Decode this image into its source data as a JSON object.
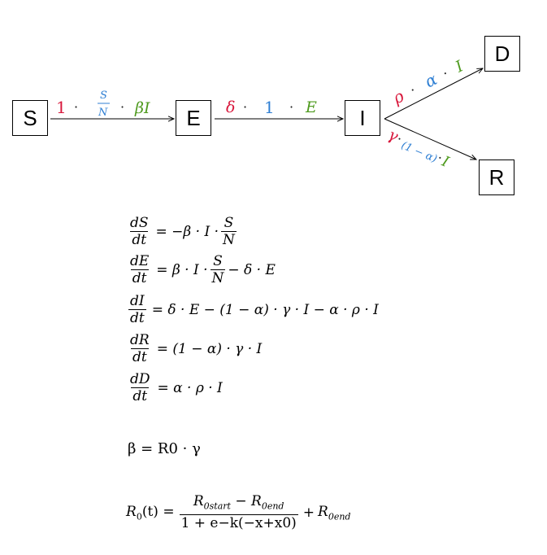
{
  "nodes": {
    "s": "S",
    "e": "E",
    "i": "I",
    "d": "D",
    "r": "R"
  },
  "edges": {
    "s_to_e": {
      "c1": "1",
      "dot1": "·",
      "frac_num": "S",
      "frac_den": "N",
      "dot2": "·",
      "c3": "βI"
    },
    "e_to_i": {
      "c1": "δ",
      "dot1": "·",
      "c2": "1",
      "dot2": "·",
      "c3": "E"
    },
    "i_to_d": {
      "c1": "ρ",
      "dot1": "·",
      "c2": "α",
      "dot2": "·",
      "c3": "I"
    },
    "i_to_r": {
      "c1": "γ",
      "dot1": "·",
      "c2": "(1 − α)",
      "dot2": "·",
      "c3": "I"
    }
  },
  "colors": {
    "red": "#d8183c",
    "blue": "#2f7fd3",
    "green": "#4e9a1e"
  },
  "equations": {
    "ds": {
      "num": "dS",
      "den": "dt",
      "rhs_a": "= −β · I ·",
      "frac_num": "S",
      "frac_den": "N"
    },
    "de": {
      "num": "dE",
      "den": "dt",
      "rhs_a": "= β · I ·",
      "frac_num": "S",
      "frac_den": "N",
      "rhs_b": "− δ · E"
    },
    "di": {
      "num": "dI",
      "den": "dt",
      "rhs": "= δ · E − (1 − α) · γ · I − α · ρ · I"
    },
    "dr": {
      "num": "dR",
      "den": "dt",
      "rhs": "= (1 − α) · γ · I"
    },
    "dd": {
      "num": "dD",
      "den": "dt",
      "rhs": "= α · ρ · I"
    }
  },
  "beta_eq": "β = R0 · γ",
  "r0_eq": {
    "lhs": "R",
    "lhs_sub": "0",
    "lhs_arg": "(t) =",
    "num_a": "R",
    "num_a_sub": "0start",
    "num_minus": "−",
    "num_b": "R",
    "num_b_sub": "0end",
    "den": "1 + e−k(−x+x0)",
    "plus": "+",
    "tail": "R",
    "tail_sub": "0end"
  }
}
